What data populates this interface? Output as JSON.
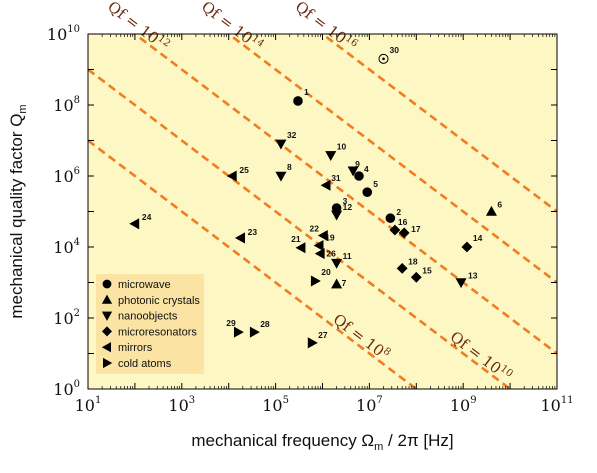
{
  "chart_data": {
    "type": "scatter",
    "xlabel": "mechanical frequency Ω",
    "xlabel_sub": "m",
    "xlabel_suffix": " / 2π [Hz]",
    "ylabel": "mechanical quality factor Q",
    "ylabel_sub": "m",
    "xscale": "log",
    "yscale": "log",
    "xlim": [
      10,
      100000000000
    ],
    "ylim": [
      1,
      10000000000
    ],
    "x_ticks": [
      {
        "base": "10",
        "exp": "1",
        "value": 10
      },
      {
        "base": "10",
        "exp": "3",
        "value": 1000
      },
      {
        "base": "10",
        "exp": "5",
        "value": 100000
      },
      {
        "base": "10",
        "exp": "7",
        "value": 10000000
      },
      {
        "base": "10",
        "exp": "9",
        "value": 1000000000
      },
      {
        "base": "10",
        "exp": "11",
        "value": 100000000000
      }
    ],
    "y_ticks": [
      {
        "base": "10",
        "exp": "0",
        "value": 1
      },
      {
        "base": "10",
        "exp": "2",
        "value": 100
      },
      {
        "base": "10",
        "exp": "4",
        "value": 10000
      },
      {
        "base": "10",
        "exp": "6",
        "value": 1000000
      },
      {
        "base": "10",
        "exp": "8",
        "value": 100000000
      },
      {
        "base": "10",
        "exp": "10",
        "value": 10000000000
      }
    ],
    "qf_lines": [
      {
        "qf": 100000000,
        "label": "Qf = 10",
        "exp": "8"
      },
      {
        "qf": 10000000000,
        "label": "Qf = 10",
        "exp": "10"
      },
      {
        "qf": 1000000000000,
        "label": "Qf = 10",
        "exp": "12"
      },
      {
        "qf": 100000000000000,
        "label": "Qf = 10",
        "exp": "14"
      },
      {
        "qf": 10000000000000000,
        "label": "Qf = 10",
        "exp": "16"
      }
    ],
    "legend": {
      "position": "bottom-left",
      "entries": [
        {
          "marker": "circle",
          "label": "microwave"
        },
        {
          "marker": "triangle-up",
          "label": "photonic crystals"
        },
        {
          "marker": "triangle-down",
          "label": "nanoobjects"
        },
        {
          "marker": "diamond",
          "label": "microresonators"
        },
        {
          "marker": "triangle-left",
          "label": "mirrors"
        },
        {
          "marker": "triangle-right",
          "label": "cold atoms"
        }
      ]
    },
    "points": [
      {
        "id": "1",
        "marker": "circle",
        "x": 300000,
        "y": 130000000
      },
      {
        "id": "2",
        "marker": "circle",
        "x": 28000000,
        "y": 65000
      },
      {
        "id": "3",
        "marker": "circle",
        "x": 2000000,
        "y": 125000
      },
      {
        "id": "4",
        "marker": "circle",
        "x": 6000000,
        "y": 1000000
      },
      {
        "id": "5",
        "marker": "circle",
        "x": 9000000,
        "y": 350000
      },
      {
        "id": "6",
        "marker": "triangle-up",
        "x": 4000000000,
        "y": 100000
      },
      {
        "id": "7",
        "marker": "triangle-up",
        "x": 2000000,
        "y": 900
      },
      {
        "id": "8",
        "marker": "triangle-down",
        "x": 130000,
        "y": 1000000
      },
      {
        "id": "9",
        "marker": "triangle-down",
        "x": 4500000,
        "y": 1400000
      },
      {
        "id": "10",
        "marker": "triangle-down",
        "x": 1500000,
        "y": 3800000
      },
      {
        "id": "11",
        "marker": "triangle-down",
        "x": 2000000,
        "y": 3500
      },
      {
        "id": "12",
        "marker": "triangle-down",
        "x": 2000000,
        "y": 80000
      },
      {
        "id": "13",
        "marker": "triangle-down",
        "x": 900000000,
        "y": 1000
      },
      {
        "id": "14",
        "marker": "diamond",
        "x": 1200000000,
        "y": 10000
      },
      {
        "id": "15",
        "marker": "diamond",
        "x": 100000000,
        "y": 1400
      },
      {
        "id": "16",
        "marker": "diamond",
        "x": 35000000,
        "y": 30000
      },
      {
        "id": "17",
        "marker": "diamond",
        "x": 55000000,
        "y": 25000
      },
      {
        "id": "18",
        "marker": "diamond",
        "x": 50000000,
        "y": 2500
      },
      {
        "id": "19",
        "marker": "triangle-left",
        "x": 850000,
        "y": 11000
      },
      {
        "id": "21",
        "marker": "triangle-left",
        "x": 350000,
        "y": 9500
      },
      {
        "id": "22",
        "marker": "triangle-left",
        "x": 1050000,
        "y": 21000
      },
      {
        "id": "23",
        "marker": "triangle-left",
        "x": 18000,
        "y": 18000
      },
      {
        "id": "24",
        "marker": "triangle-left",
        "x": 100,
        "y": 45000
      },
      {
        "id": "25",
        "marker": "triangle-left",
        "x": 12000,
        "y": 1000000
      },
      {
        "id": "26",
        "marker": "triangle-left",
        "x": 900000,
        "y": 6500
      },
      {
        "id": "31",
        "marker": "triangle-left",
        "x": 1200000,
        "y": 550000
      },
      {
        "id": "20",
        "marker": "triangle-right",
        "x": 700000,
        "y": 1100
      },
      {
        "id": "27",
        "marker": "triangle-right",
        "x": 600000,
        "y": 20
      },
      {
        "id": "28",
        "marker": "triangle-right",
        "x": 35000,
        "y": 40
      },
      {
        "id": "29",
        "marker": "triangle-right",
        "x": 16000,
        "y": 40
      },
      {
        "id": "32",
        "marker": "triangle-down",
        "x": 130000,
        "y": 8000000
      },
      {
        "id": "30",
        "marker": "circled-dot",
        "x": 20000000,
        "y": 2000000000
      }
    ]
  },
  "colors": {
    "plot_bg": "#fdf8c3",
    "qf_line": "#f07d22",
    "legend_bg": "#fbe3a4",
    "marker": "#000000"
  }
}
